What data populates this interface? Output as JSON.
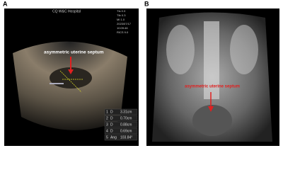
{
  "panels": [
    {
      "label": "A",
      "hospital": "CQ W&C Hospital",
      "header": [
        "TIs 0.3",
        "TIb 0.3",
        "MI 1.0",
        "2023/07/17",
        "10:09:46",
        "RICS 9.0"
      ],
      "annotation": "asymmetric uterine septum",
      "measurements": [
        [
          "1",
          "D",
          "3.31cm"
        ],
        [
          "2",
          "D",
          "0.70cm"
        ],
        [
          "3",
          "D",
          "0.88cm"
        ],
        [
          "4",
          "D",
          "0.69cm"
        ],
        [
          "5",
          "Ang",
          "103.84°"
        ]
      ]
    },
    {
      "label": "B",
      "annotation": "asymmetric uterine septum"
    }
  ]
}
